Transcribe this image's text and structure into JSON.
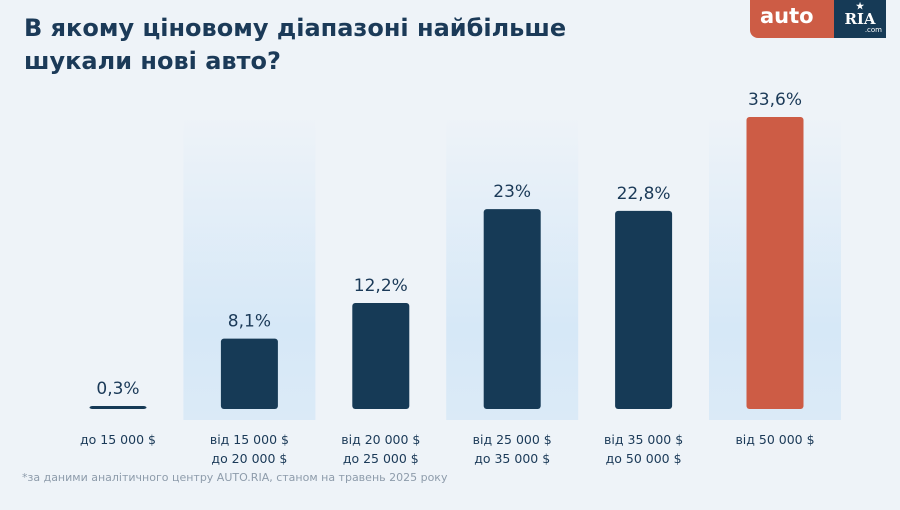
{
  "title": "В якому ціновому діапазоні найбільше шукали нові авто?",
  "logo": {
    "left": "auto",
    "right": "RIA",
    ".com": ".com",
    "right_sub": ".com"
  },
  "footnote": "*за даними аналітичного центру AUTO.RIA, станом на травень 2025 року",
  "colors": {
    "bar": "#163a56",
    "highlight": "#cd5c45",
    "band": "#d6e8f7"
  },
  "chart_data": {
    "type": "bar",
    "categories": [
      [
        "до 15 000 $"
      ],
      [
        "від 15 000 $",
        "до 20 000 $"
      ],
      [
        "від 20 000 $",
        "до 25 000 $"
      ],
      [
        "від 25 000 $",
        "до 35 000 $"
      ],
      [
        "від 35 000 $",
        "до 50 000 $"
      ],
      [
        "від 50 000 $"
      ]
    ],
    "values": [
      0.3,
      8.1,
      12.2,
      23,
      22.8,
      33.6
    ],
    "labels": [
      "0,3%",
      "8,1%",
      "12,2%",
      "23%",
      "22,8%",
      "33,6%"
    ],
    "highlight_index": 5,
    "ylim": [
      0,
      33.6
    ],
    "grid": false
  }
}
